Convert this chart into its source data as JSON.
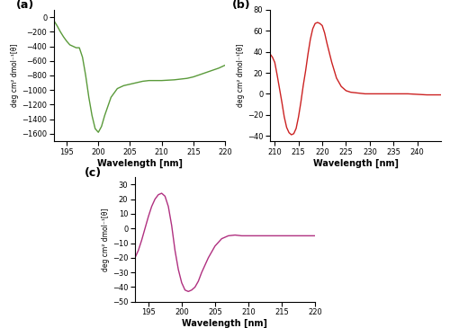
{
  "panel_a": {
    "label": "(a)",
    "color": "#5a9a3a",
    "xlabel": "Wavelength [nm]",
    "ylabel": "deg cm² dmol⁻¹[θ]",
    "xlim": [
      193,
      220
    ],
    "ylim": [
      -1700,
      100
    ],
    "xticks": [
      195,
      200,
      205,
      210,
      215,
      220
    ],
    "yticks": [
      0,
      -200,
      -400,
      -600,
      -800,
      -1000,
      -1200,
      -1400,
      -1600
    ],
    "x": [
      193,
      193.5,
      194,
      194.5,
      195,
      195.5,
      196,
      196.5,
      197,
      197.5,
      198,
      198.5,
      199,
      199.5,
      200,
      200.5,
      201,
      202,
      203,
      204,
      205,
      206,
      207,
      208,
      209,
      210,
      211,
      212,
      213,
      214,
      215,
      216,
      217,
      218,
      219,
      220
    ],
    "y": [
      -50,
      -120,
      -200,
      -270,
      -330,
      -380,
      -400,
      -420,
      -420,
      -550,
      -800,
      -1100,
      -1350,
      -1530,
      -1580,
      -1500,
      -1350,
      -1100,
      -980,
      -940,
      -920,
      -900,
      -880,
      -870,
      -870,
      -870,
      -865,
      -860,
      -850,
      -840,
      -820,
      -790,
      -760,
      -730,
      -700,
      -660
    ]
  },
  "panel_b": {
    "label": "(b)",
    "color": "#cc2222",
    "xlabel": "Wavelength [nm]",
    "ylabel": "deg cm² dmol⁻¹[θ]",
    "xlim": [
      209,
      245
    ],
    "ylim": [
      -45,
      80
    ],
    "xticks": [
      210,
      215,
      220,
      225,
      230,
      235,
      240
    ],
    "yticks": [
      -40,
      -20,
      0,
      20,
      40,
      60,
      80
    ],
    "x": [
      209,
      209.5,
      210,
      210.5,
      211,
      211.5,
      212,
      212.5,
      213,
      213.5,
      214,
      214.5,
      215,
      215.5,
      216,
      216.5,
      217,
      217.5,
      218,
      218.5,
      219,
      219.5,
      220,
      220.5,
      221,
      222,
      223,
      224,
      225,
      226,
      227,
      228,
      229,
      230,
      232,
      234,
      236,
      238,
      240,
      242,
      244,
      245
    ],
    "y": [
      38,
      35,
      30,
      18,
      5,
      -8,
      -22,
      -32,
      -37,
      -39,
      -38,
      -33,
      -22,
      -8,
      8,
      22,
      38,
      52,
      62,
      67,
      68,
      67,
      65,
      58,
      48,
      30,
      15,
      7,
      3,
      1.5,
      1,
      0.5,
      0,
      0,
      0,
      0,
      0,
      0,
      -0.5,
      -1,
      -1,
      -1
    ]
  },
  "panel_c": {
    "label": "(c)",
    "color": "#b03080",
    "xlabel": "Wavelength [nm]",
    "ylabel": "deg cm² dmol⁻¹[θ]",
    "xlim": [
      193,
      220
    ],
    "ylim": [
      -50,
      35
    ],
    "xticks": [
      195,
      200,
      205,
      210,
      215,
      220
    ],
    "yticks": [
      -50,
      -40,
      -30,
      -20,
      -10,
      0,
      10,
      20,
      30
    ],
    "x": [
      193,
      193.5,
      194,
      194.5,
      195,
      195.5,
      196,
      196.5,
      197,
      197.5,
      198,
      198.5,
      199,
      199.5,
      200,
      200.5,
      201,
      201.5,
      202,
      202.5,
      203,
      204,
      205,
      206,
      207,
      208,
      209,
      210,
      211,
      212,
      213,
      214,
      215,
      216,
      217,
      218,
      219,
      220
    ],
    "y": [
      -20,
      -15,
      -8,
      0,
      8,
      15,
      20,
      23,
      24,
      22,
      15,
      2,
      -15,
      -28,
      -37,
      -42,
      -43,
      -42,
      -40,
      -36,
      -30,
      -20,
      -12,
      -7,
      -5,
      -4.5,
      -5,
      -5,
      -5,
      -5,
      -5,
      -5,
      -5,
      -5,
      -5,
      -5,
      -5,
      -5
    ]
  },
  "background_color": "#ffffff"
}
